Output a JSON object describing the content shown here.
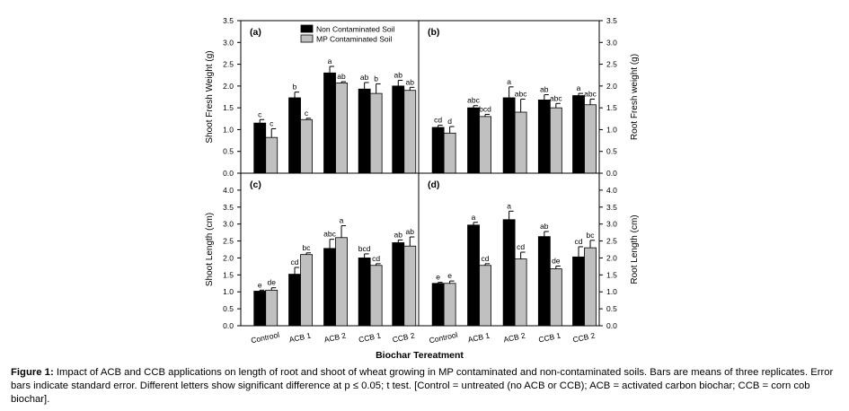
{
  "figure": {
    "caption_label": "Figure 1:",
    "caption_text": " Impact of ACB and CCB applications on length of root and shoot of wheat growing in MP contaminated and non-contaminated soils. Bars are means of three replicates. Error bars indicate standard error. Different letters show significant difference at p ≤ 0.05; t test. [Control = untreated (no ACB or CCB); ACB = activated carbon biochar; CCB = corn cob biochar].",
    "x_title": "Biochar Tereatment"
  },
  "legend": {
    "items": [
      "Non Contaminated Soil",
      "MP Contaminated Soil"
    ],
    "colors": [
      "#000000",
      "#c0c0c0"
    ]
  },
  "chart_data": [
    {
      "type": "bar",
      "panel_label": "(a)",
      "ylabel": "Shoot Fresh Weight (g)",
      "ylim": [
        0,
        3.5
      ],
      "yticks": [
        "0.0",
        "0.5",
        "1.0",
        "1.5",
        "2.0",
        "2.5",
        "3.0",
        "3.5"
      ],
      "categories": [
        "Controol",
        "ACB 1",
        "ACB 2",
        "CCB 1",
        "CCB 2"
      ],
      "series": [
        {
          "name": "Non Contaminated Soil",
          "color": "#000000",
          "values": [
            1.15,
            1.73,
            2.3,
            1.93,
            2.0
          ],
          "errors": [
            0.08,
            0.13,
            0.15,
            0.15,
            0.13
          ],
          "letters": [
            "c",
            "b",
            "a",
            "ab",
            "ab"
          ]
        },
        {
          "name": "MP Contaminated Soil",
          "color": "#c0c0c0",
          "values": [
            0.82,
            1.23,
            2.07,
            1.83,
            1.9
          ],
          "errors": [
            0.2,
            0.03,
            0.03,
            0.22,
            0.07
          ],
          "letters": [
            "c",
            "c",
            "ab",
            "b",
            "ab"
          ]
        }
      ]
    },
    {
      "type": "bar",
      "panel_label": "(b)",
      "ylabel": "Root Fresh weight (g)",
      "ylim": [
        0,
        3.5
      ],
      "yticks": [
        "0.0",
        "0.5",
        "1.0",
        "1.5",
        "2.0",
        "2.5",
        "3.0",
        "3.5"
      ],
      "categories": [
        "Controol",
        "ACB 1",
        "ACB 2",
        "CCB 1",
        "CCB 2"
      ],
      "series": [
        {
          "name": "Non Contaminated Soil",
          "color": "#000000",
          "values": [
            1.05,
            1.5,
            1.73,
            1.68,
            1.78
          ],
          "errors": [
            0.05,
            0.05,
            0.25,
            0.12,
            0.05
          ],
          "letters": [
            "cd",
            "abc",
            "a",
            "ab",
            "a"
          ]
        },
        {
          "name": "MP Contaminated Soil",
          "color": "#c0c0c0",
          "values": [
            0.92,
            1.3,
            1.4,
            1.5,
            1.57
          ],
          "errors": [
            0.15,
            0.05,
            0.3,
            0.1,
            0.13
          ],
          "letters": [
            "d",
            "bcd",
            "abc",
            "abc",
            "abc"
          ]
        }
      ]
    },
    {
      "type": "bar",
      "panel_label": "(c)",
      "ylabel": "Shoot Length (cm)",
      "ylim": [
        0,
        4.5
      ],
      "yticks": [
        "0.0",
        "0.5",
        "1.0",
        "1.5",
        "2.0",
        "2.5",
        "3.0",
        "3.5",
        "4.0"
      ],
      "categories": [
        "Controol",
        "ACB 1",
        "ACB 2",
        "CCB 1",
        "CCB 2"
      ],
      "series": [
        {
          "name": "Non Contaminated Soil",
          "color": "#000000",
          "values": [
            1.02,
            1.52,
            2.28,
            2.0,
            2.45
          ],
          "errors": [
            0.03,
            0.2,
            0.27,
            0.12,
            0.08
          ],
          "letters": [
            "e",
            "cd",
            "abc",
            "bcd",
            "ab"
          ]
        },
        {
          "name": "MP Contaminated Soil",
          "color": "#c0c0c0",
          "values": [
            1.05,
            2.1,
            2.6,
            1.78,
            2.35
          ],
          "errors": [
            0.07,
            0.05,
            0.35,
            0.05,
            0.27
          ],
          "letters": [
            "de",
            "bc",
            "a",
            "cd",
            "ab"
          ]
        }
      ]
    },
    {
      "type": "bar",
      "panel_label": "(d)",
      "ylabel": "Root Length (cm)",
      "ylim": [
        0,
        4.5
      ],
      "yticks": [
        "0.0",
        "0.5",
        "1.0",
        "1.5",
        "2.0",
        "2.5",
        "3.0",
        "3.5",
        "4.0"
      ],
      "categories": [
        "Controol",
        "ACB 1",
        "ACB 2",
        "CCB 1",
        "CCB 2"
      ],
      "series": [
        {
          "name": "Non Contaminated Soil",
          "color": "#000000",
          "values": [
            1.25,
            2.97,
            3.13,
            2.63,
            2.03
          ],
          "errors": [
            0.03,
            0.08,
            0.25,
            0.15,
            0.3
          ],
          "letters": [
            "e",
            "a",
            "a",
            "ab",
            "cd"
          ]
        },
        {
          "name": "MP Contaminated Soil",
          "color": "#c0c0c0",
          "values": [
            1.25,
            1.78,
            1.97,
            1.68,
            2.3
          ],
          "errors": [
            0.07,
            0.05,
            0.2,
            0.08,
            0.22
          ],
          "letters": [
            "e",
            "cd",
            "cd",
            "de",
            "bc"
          ]
        }
      ]
    }
  ]
}
